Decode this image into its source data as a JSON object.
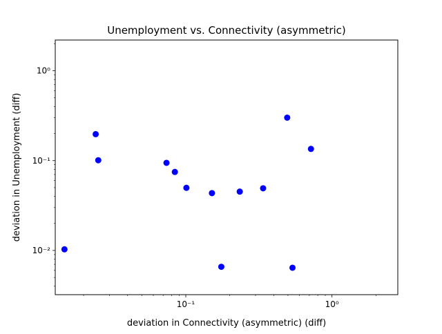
{
  "chart_data": {
    "type": "scatter",
    "title": "Unemployment vs. Connectivity (asymmetric)",
    "xlabel": "deviation in Connectivity (asymmetric) (diff)",
    "ylabel": "deviation in Unemployment (diff)",
    "xscale": "log",
    "yscale": "log",
    "xlim": [
      0.0128,
      2.82
    ],
    "ylim": [
      0.00322,
      2.2
    ],
    "grid": false,
    "marker_color": "#0000ff",
    "x_ticks": [
      {
        "value": 0.1,
        "label": "10⁻¹"
      },
      {
        "value": 1,
        "label": "10⁰"
      }
    ],
    "y_ticks": [
      {
        "value": 0.01,
        "label": "10⁻²"
      },
      {
        "value": 0.1,
        "label": "10⁻¹"
      },
      {
        "value": 1,
        "label": "10⁰"
      }
    ],
    "points": [
      {
        "x": 0.0148,
        "y": 0.0103
      },
      {
        "x": 0.0242,
        "y": 0.197
      },
      {
        "x": 0.0252,
        "y": 0.101
      },
      {
        "x": 0.0738,
        "y": 0.0945
      },
      {
        "x": 0.0842,
        "y": 0.0748
      },
      {
        "x": 0.101,
        "y": 0.0498
      },
      {
        "x": 0.151,
        "y": 0.0435
      },
      {
        "x": 0.175,
        "y": 0.00658
      },
      {
        "x": 0.234,
        "y": 0.0452
      },
      {
        "x": 0.338,
        "y": 0.0492
      },
      {
        "x": 0.494,
        "y": 0.301
      },
      {
        "x": 0.537,
        "y": 0.00642
      },
      {
        "x": 0.718,
        "y": 0.135
      }
    ]
  }
}
